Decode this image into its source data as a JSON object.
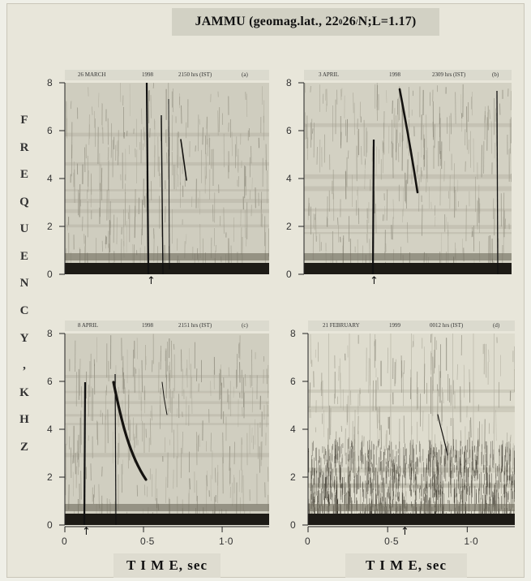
{
  "title": {
    "text": "JAMMU (geomag.lat., 22",
    "deg": "0",
    "rest": "26",
    "prime": "/",
    "tail": " N;L=1.17)"
  },
  "y_axis_label": [
    "F",
    "R",
    "E",
    "Q",
    "U",
    "E",
    "N",
    "C",
    "Y",
    ",",
    "K",
    "H",
    "Z"
  ],
  "x_axis_label": "T I M E, sec",
  "panels": [
    {
      "date": "26  MARCH",
      "year": "1998",
      "time": "2150  hrs (IST)",
      "tag": "(a)",
      "yticks": [
        "8",
        "6",
        "4",
        "2",
        "0"
      ],
      "xticks": [],
      "arrow": "↑"
    },
    {
      "date": "3    APRIL",
      "year": "1998",
      "time": "2309  hrs (IST)",
      "tag": "(b)",
      "yticks": [
        "8",
        "6",
        "4",
        "2",
        "0"
      ],
      "xticks": [],
      "arrow": "↑"
    },
    {
      "date": "8    APRIL",
      "year": "1998",
      "time": "2151  hrs (IST)",
      "tag": "(c)",
      "yticks": [
        "8",
        "6",
        "4",
        "2",
        "0"
      ],
      "xticks": [
        "0",
        "0·5",
        "1·0"
      ],
      "arrow": "↑"
    },
    {
      "date": "21  FEBRUARY",
      "year": "1999",
      "time": "0012  hrs (IST)",
      "tag": "(d)",
      "yticks": [
        "8",
        "6",
        "4",
        "2",
        "0"
      ],
      "xticks": [
        "0",
        "0·5",
        "1·0"
      ],
      "arrow": "↑"
    }
  ]
}
